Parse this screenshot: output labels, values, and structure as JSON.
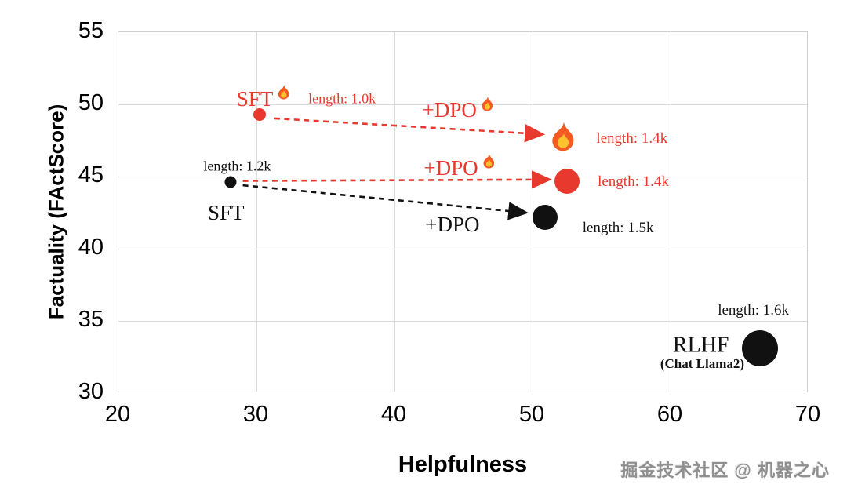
{
  "watermark": "掘金技术社区 @ 机器之心",
  "chart_data": {
    "type": "scatter",
    "title": "",
    "xlabel": "Helpfulness",
    "ylabel": "Factuality (FActScore)",
    "xlim": [
      20,
      70
    ],
    "ylim": [
      30,
      55
    ],
    "xticks": [
      20,
      30,
      40,
      50,
      60,
      70
    ],
    "yticks": [
      30,
      35,
      40,
      45,
      50,
      55
    ],
    "grid": true,
    "legend": "none",
    "colors": {
      "accent_red": "#e8392e",
      "point_black": "#111111",
      "grid": "#dadada"
    },
    "points": [
      {
        "name": "sft-fire",
        "label": "SFT 🔥",
        "x": 30.2,
        "y": 49.3,
        "length": "1.0k",
        "color": "#e8392e",
        "marker": "circle",
        "size": 16
      },
      {
        "name": "sft",
        "label": "SFT",
        "x": 28.1,
        "y": 44.6,
        "length": "1.2k",
        "color": "#111111",
        "marker": "circle",
        "size": 15
      },
      {
        "name": "dpo-fire",
        "label": "+DPO 🔥 (fire marker)",
        "x": 52.3,
        "y": 47.7,
        "length": "1.4k",
        "color": "#f45b22",
        "marker": "flame",
        "size": 44
      },
      {
        "name": "dpo-red",
        "label": "+DPO 🔥",
        "x": 52.5,
        "y": 44.7,
        "length": "1.4k",
        "color": "#e8392e",
        "marker": "circle",
        "size": 32
      },
      {
        "name": "dpo-black",
        "label": "+DPO",
        "x": 50.9,
        "y": 42.2,
        "length": "1.5k",
        "color": "#111111",
        "marker": "circle",
        "size": 32
      },
      {
        "name": "rlhf",
        "label": "RLHF (Chat Llama2)",
        "x": 66.5,
        "y": 33.1,
        "length": "1.6k",
        "color": "#111111",
        "marker": "circle",
        "size": 46
      }
    ],
    "annotations": [
      {
        "name": "sft-fire-label",
        "text": "SFT",
        "flame": true,
        "flameSize": 22,
        "x": 30.6,
        "y": 50.4,
        "color": "#e8392e",
        "fontSize": 27
      },
      {
        "name": "sft-fire-length",
        "text": "length: 1.0k",
        "flame": false,
        "x": 36.2,
        "y": 50.4,
        "color": "#e8392e",
        "fontSize": 18
      },
      {
        "name": "dpo-fire-label",
        "text": "+DPO",
        "flame": true,
        "flameSize": 22,
        "x": 44.7,
        "y": 49.6,
        "color": "#e8392e",
        "fontSize": 27
      },
      {
        "name": "dpo-fire-length",
        "text": "length: 1.4k",
        "flame": false,
        "x": 57.2,
        "y": 47.6,
        "color": "#e8392e",
        "fontSize": 19
      },
      {
        "name": "sft-length",
        "text": "length: 1.2k",
        "flame": false,
        "x": 28.6,
        "y": 45.7,
        "color": "#111111",
        "fontSize": 18
      },
      {
        "name": "dpo-red-label",
        "text": "+DPO",
        "flame": true,
        "flameSize": 22,
        "x": 44.8,
        "y": 45.6,
        "color": "#e8392e",
        "fontSize": 27
      },
      {
        "name": "dpo-red-length",
        "text": "length: 1.4k",
        "flame": false,
        "x": 57.3,
        "y": 44.6,
        "color": "#e8392e",
        "fontSize": 19
      },
      {
        "name": "sft-label",
        "text": "SFT",
        "flame": false,
        "x": 27.8,
        "y": 42.5,
        "color": "#111111",
        "fontSize": 27
      },
      {
        "name": "dpo-black-label",
        "text": "+DPO",
        "flame": false,
        "x": 44.2,
        "y": 41.7,
        "color": "#111111",
        "fontSize": 27
      },
      {
        "name": "dpo-black-length",
        "text": "length: 1.5k",
        "flame": false,
        "x": 56.2,
        "y": 41.4,
        "color": "#111111",
        "fontSize": 19
      },
      {
        "name": "rlhf-length",
        "text": "length: 1.6k",
        "flame": false,
        "x": 66.0,
        "y": 35.7,
        "color": "#111111",
        "fontSize": 19
      },
      {
        "name": "rlhf-label",
        "text": "RLHF",
        "flame": false,
        "x": 62.2,
        "y": 33.3,
        "color": "#111111",
        "fontSize": 28
      },
      {
        "name": "rlhf-sub-label",
        "text": "(Chat Llama2)",
        "flame": false,
        "x": 62.3,
        "y": 32.0,
        "color": "#111111",
        "fontSize": 17,
        "bold": true
      }
    ],
    "arrows": [
      {
        "name": "sft-fire-to-dpo-fire",
        "color": "#e8392e",
        "from": [
          31.3,
          49.0
        ],
        "to": [
          50.7,
          47.9
        ]
      },
      {
        "name": "sft-to-dpo-red",
        "color": "#e8392e",
        "from": [
          29.0,
          44.65
        ],
        "to": [
          51.2,
          44.75
        ]
      },
      {
        "name": "sft-to-dpo-black",
        "color": "#111111",
        "from": [
          29.0,
          44.35
        ],
        "to": [
          49.5,
          42.45
        ]
      }
    ]
  }
}
